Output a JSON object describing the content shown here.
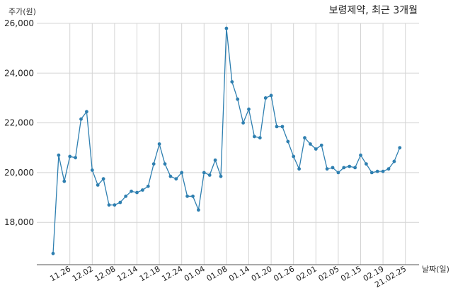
{
  "chart_data": {
    "type": "line",
    "title": "보령제약, 최근 3개월",
    "ylabel": "주가(원)",
    "xlabel": "날짜(일)",
    "ylim": [
      16500,
      26000
    ],
    "yticks": [
      18000,
      20000,
      22000,
      24000,
      26000
    ],
    "ytick_labels": [
      "18,000",
      "20,000",
      "22,000",
      "24,000",
      "26,000"
    ],
    "grid": true,
    "legend": "none",
    "x_tick_labels": [
      "11.26",
      "12.02",
      "12.08",
      "12.14",
      "12.18",
      "12.24",
      "01.04",
      "01.08",
      "01.14",
      "01.20",
      "01.26",
      "02.01",
      "02.05",
      "02.15",
      "02.19",
      "21.02.25"
    ],
    "x_tick_positions": [
      3,
      7,
      11,
      15,
      19,
      23,
      27,
      31,
      35,
      39,
      43,
      47,
      51,
      55,
      59,
      63
    ],
    "series": [
      {
        "color": "#2e7fb0",
        "values": [
          16750,
          20700,
          19650,
          20650,
          20600,
          22150,
          22450,
          20100,
          19500,
          19750,
          18700,
          18700,
          18800,
          19050,
          19250,
          19200,
          19300,
          19450,
          20350,
          21150,
          20350,
          19850,
          19750,
          20000,
          19050,
          19050,
          18500,
          20000,
          19900,
          20500,
          19850,
          25800,
          23650,
          22950,
          22000,
          22550,
          21450,
          21400,
          23000,
          23100,
          21850,
          21850,
          21250,
          20650,
          20150,
          21400,
          21150,
          20950,
          21100,
          20150,
          20200,
          20000,
          20200,
          20250,
          20200,
          20700,
          20350,
          20000,
          20050,
          20050,
          20150,
          20450,
          21000
        ]
      }
    ]
  }
}
